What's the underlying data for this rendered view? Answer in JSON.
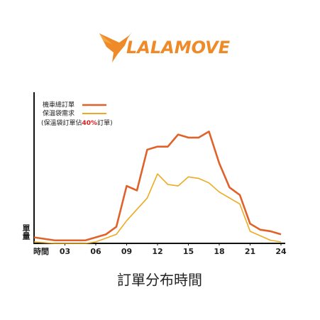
{
  "logo": "LALAMOVE",
  "chart_data": {
    "type": "line",
    "title": "訂單分布時間",
    "x_label": "時間",
    "y_label": "單量",
    "legend_note": [
      "(保溫袋訂單佔",
      "40%",
      "訂單)"
    ],
    "xlim": [
      0,
      24
    ],
    "ylim": [
      0,
      100
    ],
    "xticks": [
      {
        "value": 3,
        "label": "03"
      },
      {
        "value": 6,
        "label": "06"
      },
      {
        "value": 9,
        "label": "09"
      },
      12,
      15,
      18,
      21,
      24
    ],
    "series": [
      {
        "name": "機車總訂單",
        "color": "#e0622a",
        "x": [
          0,
          2,
          5,
          6,
          7,
          8,
          9,
          10,
          11,
          12,
          13,
          14,
          15,
          16,
          17,
          18,
          19,
          20,
          21,
          22,
          23,
          24
        ],
        "values": [
          4,
          2,
          2,
          4,
          6,
          11,
          38,
          35,
          62,
          64,
          64,
          72,
          70,
          70,
          74,
          53,
          37,
          32,
          13,
          9,
          8,
          6
        ]
      },
      {
        "name": "保溫袋需求",
        "color": "#eeaa22",
        "x": [
          0,
          2,
          5,
          6,
          8,
          9,
          11,
          12,
          13,
          14,
          15,
          16,
          17,
          18,
          19,
          20,
          21,
          22,
          23,
          24
        ],
        "values": [
          1,
          0,
          0,
          1,
          6,
          15,
          30,
          46,
          39,
          38,
          44,
          43,
          40,
          34,
          30,
          26,
          8,
          5,
          2,
          1
        ]
      }
    ]
  }
}
